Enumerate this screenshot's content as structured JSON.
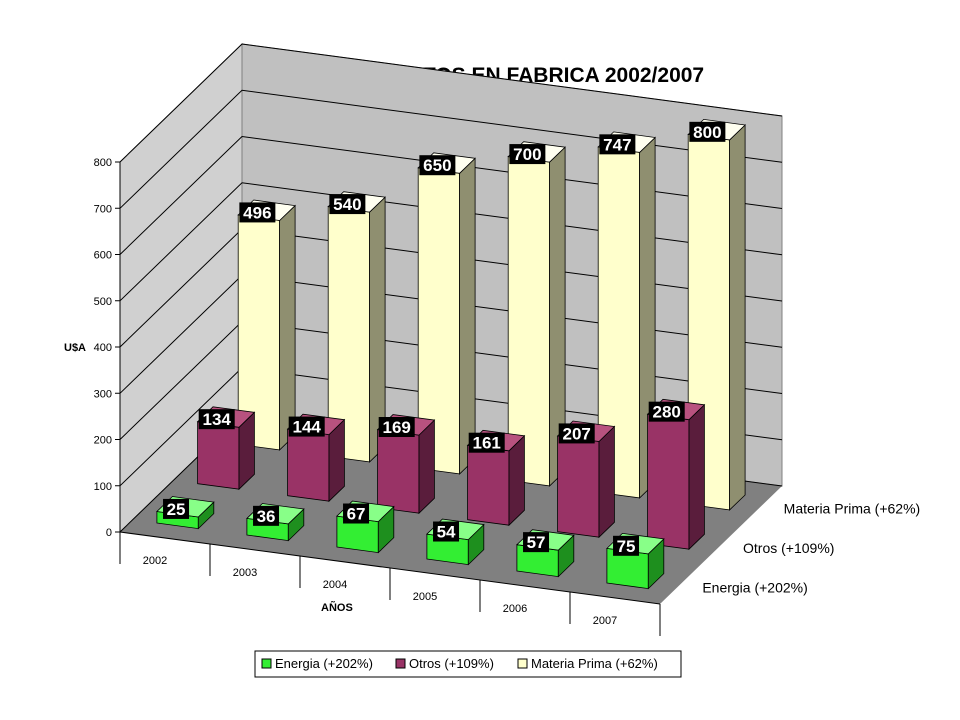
{
  "chart_data": {
    "type": "bar",
    "title": "PRINCIPALES COSTOS EN FABRICA 2002/2007",
    "xlabel": "AÑOS",
    "ylabel": "U$A",
    "ylim": [
      0,
      800
    ],
    "yticks": [
      "0",
      "100",
      "200",
      "300",
      "400",
      "500",
      "600",
      "700",
      "800"
    ],
    "categories": [
      "2002",
      "2003",
      "2004",
      "2005",
      "2006",
      "2007"
    ],
    "series": [
      {
        "name": "Energia (+202%)",
        "values": [
          25,
          36,
          67,
          54,
          57,
          75
        ],
        "labels": [
          "25",
          "36",
          "67",
          "54",
          "57",
          "75"
        ],
        "color": "#33ee33",
        "side": "#1e8f1e",
        "top": "#88ff88"
      },
      {
        "name": "Otros (+109%)",
        "values": [
          134,
          144,
          169,
          161,
          207,
          280
        ],
        "labels": [
          "134",
          "144",
          "169",
          "161",
          "207",
          "280"
        ],
        "color": "#993366",
        "side": "#5a1d3c",
        "top": "#b8527f"
      },
      {
        "name": "Materia Prima (+62%)",
        "values": [
          496,
          540,
          650,
          700,
          747,
          800
        ],
        "labels": [
          "496",
          "540",
          "650",
          "700",
          "747",
          "800"
        ],
        "color": "#ffffcc",
        "side": "#8f8f70",
        "top": "#fffff0"
      }
    ],
    "grid": true,
    "legend": "bottom",
    "three_d": true,
    "colors": {
      "wall": "#c0c0c0",
      "side_wall": "#d0d0d0",
      "floor": "#808080",
      "label_bg": "#000000"
    }
  }
}
